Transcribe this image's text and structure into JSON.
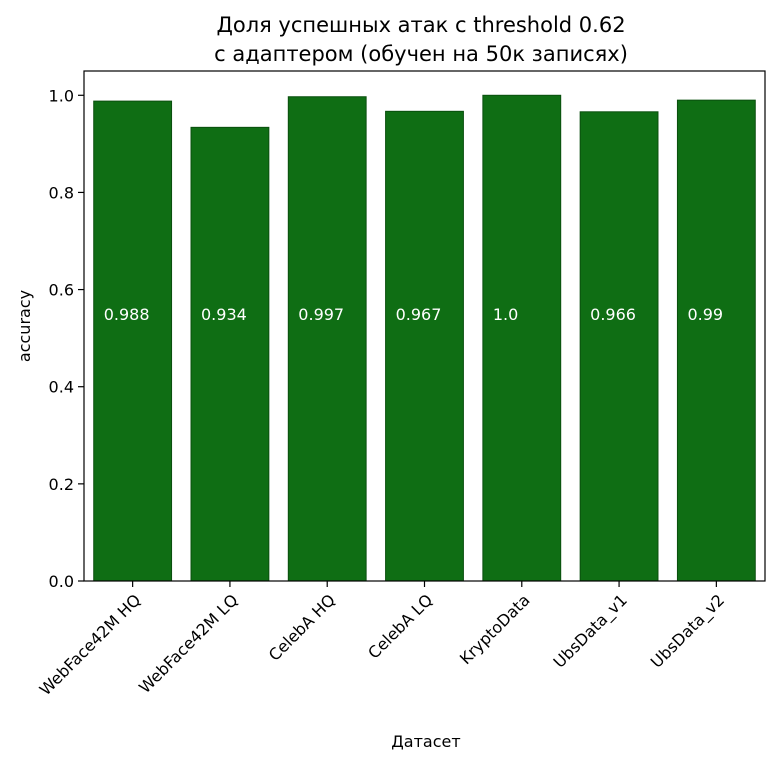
{
  "chart_data": {
    "type": "bar",
    "title_lines": [
      "Доля успешных атак с threshold 0.62",
      "с адаптером (обучен на 50к записях)"
    ],
    "xlabel": "Датасет",
    "ylabel": "accuracy",
    "categories": [
      "WebFace42M HQ",
      "WebFace42M LQ",
      "CelebA HQ",
      "CelebA LQ",
      "KryptoData",
      "UbsData_v1",
      "UbsData_v2"
    ],
    "values": [
      0.988,
      0.934,
      0.997,
      0.967,
      1.0,
      0.966,
      0.99
    ],
    "value_labels": [
      "0.988",
      "0.934",
      "0.997",
      "0.967",
      "1.0",
      "0.966",
      "0.99"
    ],
    "ylim": [
      0,
      1.05
    ],
    "yticks": [
      0.0,
      0.2,
      0.4,
      0.6,
      0.8,
      1.0
    ],
    "ytick_labels": [
      "0.0",
      "0.2",
      "0.4",
      "0.6",
      "0.8",
      "1.0"
    ],
    "grid": false,
    "bar_color": "#0f6e14",
    "bar_edge_color": "#0a4f0e",
    "data_label_color": "#ffffff"
  }
}
